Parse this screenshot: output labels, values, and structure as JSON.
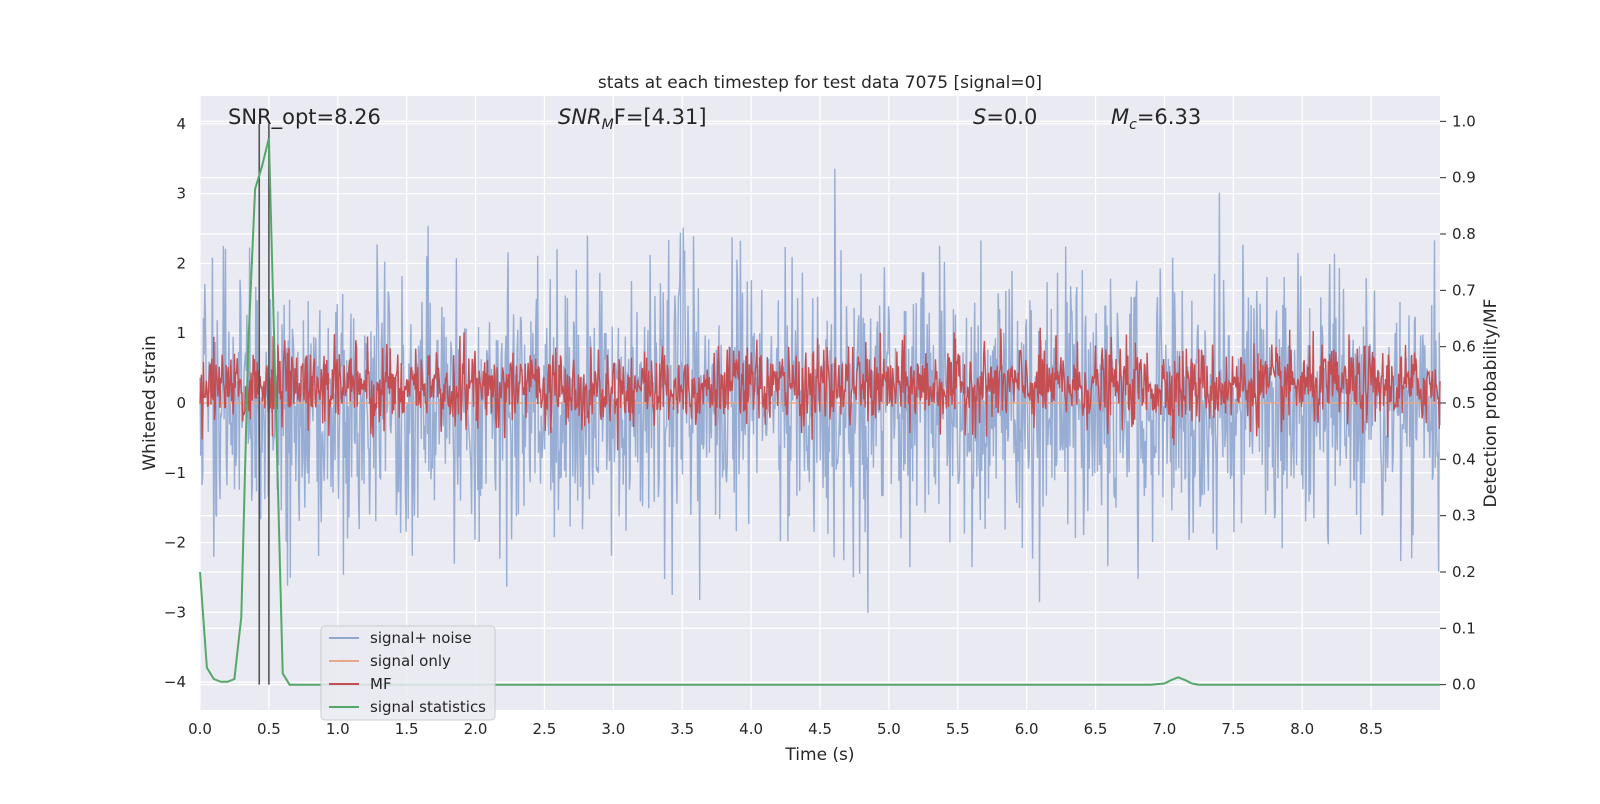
{
  "chart_data": {
    "type": "line",
    "title": "stats at each timestep for test data 7075 [signal=0]",
    "xlabel": "Time (s)",
    "ylabel": "Whitened strain",
    "ylabel_right": "Detection probability/MF",
    "xlim": [
      0,
      9.0
    ],
    "ylim": [
      -4.4,
      4.4
    ],
    "ylim_right": [
      -0.045,
      1.045
    ],
    "x_ticks": [
      "0.0",
      "0.5",
      "1.0",
      "1.5",
      "2.0",
      "2.5",
      "3.0",
      "3.5",
      "4.0",
      "4.5",
      "5.0",
      "5.5",
      "6.0",
      "6.5",
      "7.0",
      "7.5",
      "8.0",
      "8.5"
    ],
    "y_ticks": [
      "4",
      "3",
      "2",
      "1",
      "0",
      "−1",
      "−2",
      "−3",
      "−4"
    ],
    "y_ticks_right": [
      "1.0",
      "0.9",
      "0.8",
      "0.7",
      "0.6",
      "0.5",
      "0.4",
      "0.3",
      "0.2",
      "0.1",
      "0.0"
    ],
    "grid": true,
    "legend_position": "lower-left",
    "annotations": {
      "snr_opt": "SNR_opt=8.26",
      "snr_mf_label": "SNR",
      "snr_mf_sub": "M",
      "snr_mf_rest": "F=[4.31]",
      "s_label": "S",
      "s_value": "=0.0",
      "mc_label": "M",
      "mc_sub": "c",
      "mc_value": "=6.33"
    },
    "markers_x": [
      0.43,
      0.5
    ],
    "series": [
      {
        "name": "signal+ noise",
        "color": "#8fa6cf",
        "description_axis": "left",
        "noise_sigma": 0.95,
        "x_range": [
          0,
          9.0
        ],
        "num_points": 1800,
        "values": []
      },
      {
        "name": "signal only",
        "color": "#e8a789",
        "axis": "left",
        "x": [
          0,
          9.0
        ],
        "values": [
          0,
          0
        ]
      },
      {
        "name": "MF",
        "color": "#c44e52",
        "axis": "right",
        "mean": 0.53,
        "spread": 0.035,
        "x_range": [
          0,
          9.0
        ],
        "num_points": 1800
      },
      {
        "name": "signal statistics",
        "color": "#55a868",
        "axis": "right",
        "x": [
          0.0,
          0.05,
          0.1,
          0.15,
          0.2,
          0.25,
          0.3,
          0.35,
          0.4,
          0.45,
          0.5,
          0.55,
          0.6,
          0.65,
          0.7,
          1.0,
          2.0,
          3.0,
          4.0,
          5.0,
          6.0,
          6.9,
          7.0,
          7.05,
          7.1,
          7.15,
          7.2,
          7.25,
          7.3,
          8.0,
          9.0
        ],
        "values": [
          0.2,
          0.03,
          0.01,
          0.005,
          0.005,
          0.01,
          0.12,
          0.6,
          0.88,
          0.92,
          0.97,
          0.5,
          0.02,
          0.0,
          0.0,
          0.0,
          0.0,
          0.0,
          0.0,
          0.0,
          0.0,
          0.0,
          0.002,
          0.008,
          0.013,
          0.008,
          0.002,
          0.0,
          0.0,
          0.0,
          0.0
        ]
      }
    ]
  }
}
